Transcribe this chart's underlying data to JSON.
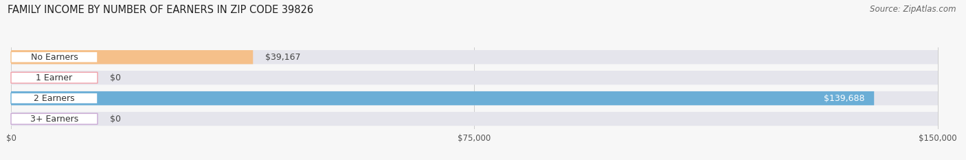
{
  "title": "FAMILY INCOME BY NUMBER OF EARNERS IN ZIP CODE 39826",
  "source": "Source: ZipAtlas.com",
  "categories": [
    "No Earners",
    "1 Earner",
    "2 Earners",
    "3+ Earners"
  ],
  "values": [
    39167,
    0,
    139688,
    0
  ],
  "bar_colors": [
    "#f5c08a",
    "#f0a0a8",
    "#6baed6",
    "#c9a8d4"
  ],
  "track_color": "#e5e5ec",
  "background_color": "#f7f7f7",
  "xlim": [
    0,
    150000
  ],
  "xticks": [
    0,
    75000,
    150000
  ],
  "xtick_labels": [
    "$0",
    "$75,000",
    "$150,000"
  ],
  "value_labels": [
    "$39,167",
    "$0",
    "$139,688",
    "$0"
  ],
  "value_label_inside": [
    false,
    false,
    true,
    false
  ],
  "title_fontsize": 10.5,
  "source_fontsize": 8.5,
  "bar_height": 0.68,
  "label_fontsize": 9,
  "value_fontsize": 9
}
